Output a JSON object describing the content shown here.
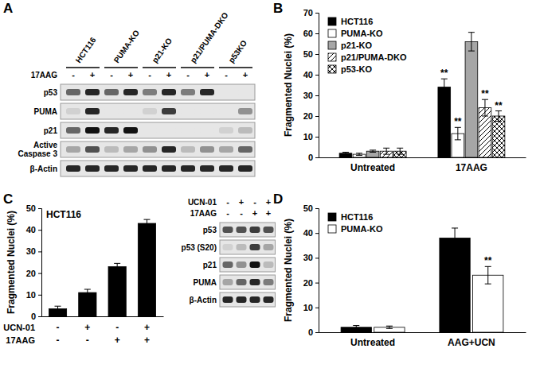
{
  "panel_labels": [
    "A",
    "B",
    "C",
    "D"
  ],
  "blots": [
    {
      "groups": [
        "HCT116",
        "PUMA-KO",
        "p21-KO",
        "p21/PUMA-DKO",
        "p53KO"
      ],
      "treatments": [
        {
          "label": "17AAG",
          "signs": [
            "-",
            "+",
            "-",
            "+",
            "-",
            "+",
            "-",
            "+",
            "-",
            "+"
          ]
        }
      ],
      "rows": [
        {
          "label": "p53",
          "bands": [
            0.6,
            0.9,
            0.6,
            0.9,
            0.5,
            0.9,
            0.5,
            0.9,
            0,
            0
          ]
        },
        {
          "label": "PUMA",
          "bands": [
            0.1,
            0.9,
            0,
            0,
            0.1,
            0.8,
            0,
            0,
            0,
            0.4
          ]
        },
        {
          "label": "p21",
          "bands": [
            0.6,
            1,
            0.9,
            1,
            0,
            0,
            0,
            0,
            0.1,
            0.2
          ]
        },
        {
          "label": "Active Caspase 3",
          "bands": [
            0.3,
            0.7,
            0.2,
            0.3,
            0.4,
            0.9,
            0.2,
            0.4,
            0.3,
            0.6
          ]
        },
        {
          "label": "β-Actin",
          "bands": [
            0.9,
            0.9,
            0.9,
            0.9,
            0.9,
            0.9,
            0.9,
            0.9,
            0.9,
            0.9
          ]
        }
      ]
    },
    {
      "treatments": [
        {
          "label": "UCN-01",
          "signs": [
            "-",
            "+",
            "-",
            "+"
          ]
        },
        {
          "label": "17AAG",
          "signs": [
            "-",
            "-",
            "+",
            "+"
          ]
        }
      ],
      "rows": [
        {
          "label": "p53",
          "bands": [
            0.7,
            0.7,
            0.8,
            0.7
          ]
        },
        {
          "label": "p53 (S20)",
          "bands": [
            0.1,
            0.2,
            0.8,
            0.3
          ]
        },
        {
          "label": "p21",
          "bands": [
            0.6,
            0.4,
            1,
            0.2
          ]
        },
        {
          "label": "PUMA",
          "bands": [
            0.3,
            0.6,
            0.9,
            0.5
          ]
        },
        {
          "label": "β-Actin",
          "bands": [
            0.9,
            0.9,
            0.9,
            0.9
          ]
        }
      ]
    }
  ],
  "chart_data": [
    {
      "type": "bar",
      "ylabel": "Fragmented Nuclei (%)",
      "categories": [
        "Untreated",
        "17AAG"
      ],
      "series": [
        {
          "name": "HCT116",
          "color": "#000000",
          "marker": "solid",
          "values": [
            2,
            34
          ],
          "errors": [
            0.5,
            4
          ],
          "significance": [
            null,
            "**"
          ]
        },
        {
          "name": "PUMA-KO",
          "color": "#ffffff",
          "marker": "solid",
          "values": [
            1.5,
            11.5
          ],
          "errors": [
            0.5,
            3
          ],
          "significance": [
            null,
            "**"
          ]
        },
        {
          "name": "p21-KO",
          "color": "#a6a6a6",
          "marker": "solid",
          "values": [
            3,
            56
          ],
          "errors": [
            0.5,
            4.5
          ],
          "significance": [
            null,
            null
          ]
        },
        {
          "name": "p21/PUMA-DKO",
          "color": "#000000",
          "marker": "diagonal-hatch",
          "values": [
            3,
            24
          ],
          "errors": [
            1.5,
            4
          ],
          "significance": [
            null,
            "**"
          ]
        },
        {
          "name": "p53-KO",
          "color": "#000000",
          "marker": "cross-hatch",
          "values": [
            3,
            20
          ],
          "errors": [
            1.5,
            2.5
          ],
          "significance": [
            null,
            "**"
          ]
        }
      ],
      "ylim": [
        0,
        70
      ],
      "yticks": [
        0,
        10,
        20,
        30,
        40,
        50,
        60,
        70
      ],
      "grid": false,
      "legend": "top-left"
    },
    {
      "type": "bar",
      "title": "HCT116",
      "ylabel": "Fragmented Nuclei (%)",
      "categories": [
        null,
        null,
        null,
        null
      ],
      "values": [
        3.5,
        11,
        23,
        43
      ],
      "errors": [
        1.2,
        1.5,
        1.5,
        1.8
      ],
      "color": "#000000",
      "x_rows": [
        {
          "label": "UCN-01",
          "values": [
            "-",
            "+",
            "-",
            "+"
          ]
        },
        {
          "label": "17AAG",
          "values": [
            "-",
            "-",
            "+",
            "+"
          ]
        }
      ],
      "ylim": [
        0,
        50
      ],
      "yticks": [
        0,
        10,
        20,
        30,
        40,
        50
      ],
      "grid": false
    },
    {
      "type": "bar",
      "ylabel": "Fragmented Nuclei (%)",
      "categories": [
        "Untreated",
        "AAG+UCN"
      ],
      "series": [
        {
          "name": "HCT116",
          "color": "#000000",
          "marker": "solid",
          "values": [
            2,
            38
          ],
          "errors": [
            0.7,
            4
          ],
          "significance": [
            null,
            null
          ]
        },
        {
          "name": "PUMA-KO",
          "color": "#ffffff",
          "marker": "solid",
          "values": [
            2,
            23
          ],
          "errors": [
            0.5,
            3.5
          ],
          "significance": [
            null,
            "**"
          ]
        }
      ],
      "ylim": [
        0,
        50
      ],
      "yticks": [
        0,
        10,
        20,
        30,
        40,
        50
      ],
      "grid": false,
      "legend": "top-left"
    }
  ]
}
